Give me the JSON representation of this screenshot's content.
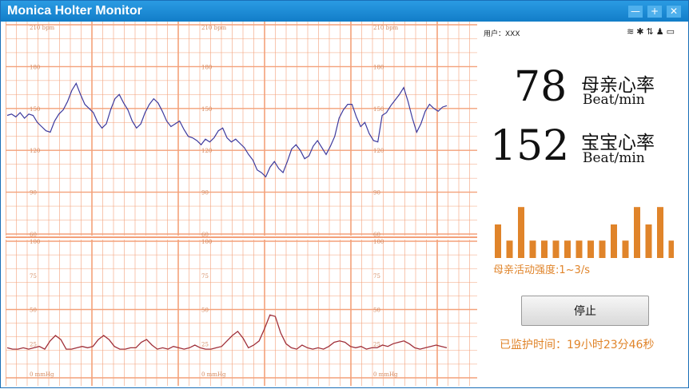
{
  "window": {
    "title": "Monica Holter Monitor",
    "buttons": {
      "minimize": "—",
      "maximize": "+",
      "close": "✕"
    }
  },
  "panel": {
    "user_label": "用户：XXX",
    "status_icons": [
      "signal-icon",
      "bluetooth-icon",
      "transfer-icon",
      "bell-icon",
      "battery-icon"
    ],
    "mother_hr": {
      "value": "78",
      "label": "母亲心率",
      "unit": "Beat/min"
    },
    "baby_hr": {
      "value": "152",
      "label": "宝宝心率",
      "unit": "Beat/min"
    },
    "activity_label": "母亲活动强度:1~3/s",
    "activity_levels": [
      0.5,
      0.26,
      0.76,
      0.26,
      0.26,
      0.26,
      0.26,
      0.26,
      0.26,
      0.26,
      0.5,
      0.26,
      0.76,
      0.5,
      0.76,
      0.26
    ],
    "stop_button": "停止",
    "monitor_time": "已监护时间：19小时23分46秒"
  },
  "chart": {
    "fhr_ticks": [
      "210 bpm",
      "180",
      "150",
      "120",
      "90",
      "60"
    ],
    "ua_ticks": [
      "100",
      "75",
      "50",
      "25",
      "0 mmHg"
    ],
    "colors": {
      "grid": "#f3a17a",
      "fhr_line": "#3d3a9e",
      "ua_line": "#a0303a",
      "accent": "#e0842a"
    }
  },
  "chart_data": [
    {
      "type": "line",
      "ylim": [
        60,
        210
      ],
      "series": [
        {
          "values": [
            145,
            146,
            144,
            147,
            143,
            146,
            145,
            140,
            137,
            134,
            133,
            141,
            146,
            149,
            155,
            163,
            168,
            160,
            153,
            150,
            147,
            140,
            136,
            139,
            149,
            157,
            160,
            154,
            149,
            141,
            136,
            139,
            147,
            153,
            157,
            154,
            148,
            141,
            137,
            139,
            141,
            135,
            130,
            129,
            127,
            124,
            128,
            126,
            129,
            134,
            136,
            129,
            126,
            128,
            125,
            122,
            117,
            113,
            106,
            104,
            101,
            108,
            112,
            107,
            104,
            112,
            121,
            124,
            120,
            114,
            116,
            123,
            127,
            122,
            117,
            123,
            130,
            143,
            149,
            153,
            153,
            144,
            137,
            140,
            132,
            127,
            126,
            145,
            147,
            152,
            156,
            160,
            165,
            155,
            143,
            133,
            139,
            148,
            153,
            150,
            148,
            151,
            152
          ]
        }
      ]
    },
    {
      "type": "line",
      "ylim": [
        0,
        100
      ],
      "series": [
        {
          "values": [
            22,
            21,
            21,
            22,
            21,
            22,
            23,
            21,
            27,
            31,
            28,
            21,
            21,
            22,
            23,
            22,
            23,
            28,
            31,
            28,
            23,
            21,
            21,
            22,
            22,
            26,
            28,
            24,
            21,
            22,
            21,
            23,
            22,
            21,
            22,
            24,
            22,
            21,
            21,
            22,
            23,
            27,
            31,
            34,
            29,
            22,
            24,
            27,
            36,
            46,
            45,
            33,
            25,
            22,
            21,
            24,
            22,
            21,
            22,
            21,
            23,
            26,
            27,
            26,
            23,
            22,
            23,
            21,
            22,
            22,
            24,
            23,
            25,
            26,
            27,
            25,
            22,
            21,
            22,
            23,
            24,
            23,
            22
          ]
        }
      ]
    }
  ]
}
